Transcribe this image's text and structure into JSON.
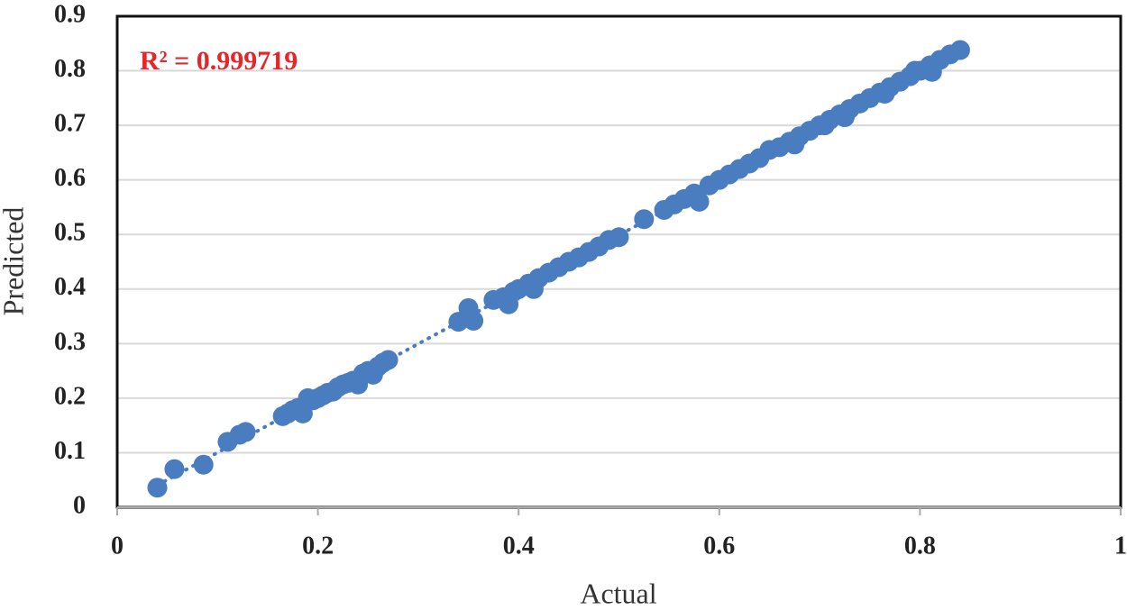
{
  "chart_data": {
    "type": "scatter",
    "x_label": "Actual",
    "y_label": "Predicted",
    "annotation": "R² = 0.999719",
    "xlim": [
      0,
      1
    ],
    "xticks": [
      0,
      0.2,
      0.4,
      0.6,
      0.8,
      1
    ],
    "ylim": [
      0,
      0.9
    ],
    "yticks": [
      0,
      0.1,
      0.2,
      0.3,
      0.4,
      0.5,
      0.6,
      0.7,
      0.8,
      0.9
    ],
    "grid": true,
    "trendline": true,
    "series": [
      {
        "color": "#4a7dbf",
        "x": [
          0.04,
          0.057,
          0.086,
          0.11,
          0.122,
          0.128,
          0.165,
          0.17,
          0.175,
          0.18,
          0.185,
          0.19,
          0.195,
          0.2,
          0.205,
          0.21,
          0.215,
          0.22,
          0.225,
          0.23,
          0.235,
          0.24,
          0.245,
          0.25,
          0.255,
          0.26,
          0.265,
          0.27,
          0.34,
          0.35,
          0.355,
          0.375,
          0.385,
          0.39,
          0.395,
          0.4,
          0.41,
          0.415,
          0.42,
          0.43,
          0.44,
          0.45,
          0.46,
          0.47,
          0.48,
          0.49,
          0.5,
          0.525,
          0.545,
          0.555,
          0.565,
          0.575,
          0.58,
          0.59,
          0.6,
          0.61,
          0.62,
          0.63,
          0.64,
          0.65,
          0.66,
          0.67,
          0.675,
          0.68,
          0.69,
          0.7,
          0.705,
          0.71,
          0.72,
          0.725,
          0.73,
          0.74,
          0.75,
          0.76,
          0.765,
          0.77,
          0.78,
          0.79,
          0.795,
          0.8,
          0.81,
          0.812,
          0.82,
          0.83,
          0.84
        ],
        "values": [
          0.036,
          0.07,
          0.078,
          0.12,
          0.133,
          0.138,
          0.167,
          0.172,
          0.178,
          0.182,
          0.172,
          0.2,
          0.196,
          0.2,
          0.205,
          0.21,
          0.212,
          0.22,
          0.225,
          0.228,
          0.232,
          0.225,
          0.245,
          0.25,
          0.243,
          0.258,
          0.265,
          0.27,
          0.34,
          0.365,
          0.342,
          0.38,
          0.385,
          0.372,
          0.395,
          0.4,
          0.41,
          0.4,
          0.42,
          0.43,
          0.44,
          0.45,
          0.458,
          0.468,
          0.478,
          0.49,
          0.495,
          0.528,
          0.545,
          0.555,
          0.565,
          0.575,
          0.56,
          0.59,
          0.6,
          0.61,
          0.62,
          0.63,
          0.64,
          0.655,
          0.66,
          0.67,
          0.665,
          0.68,
          0.69,
          0.7,
          0.7,
          0.71,
          0.72,
          0.715,
          0.73,
          0.74,
          0.75,
          0.76,
          0.758,
          0.77,
          0.78,
          0.79,
          0.8,
          0.8,
          0.81,
          0.798,
          0.82,
          0.83,
          0.838
        ]
      }
    ]
  }
}
